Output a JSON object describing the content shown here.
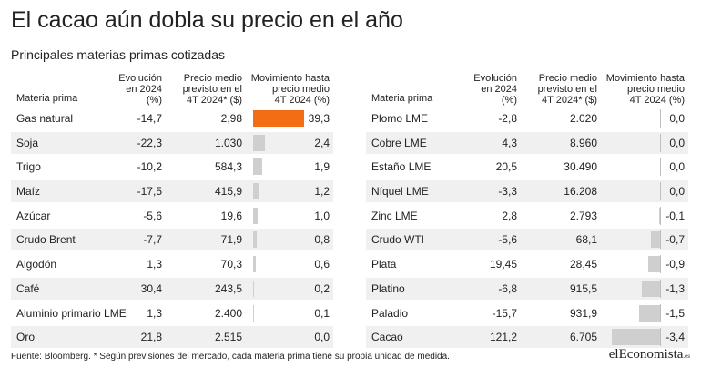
{
  "title": "El cacao aún dobla su precio en el año",
  "subtitle": "Principales materias primas cotizadas",
  "headers": {
    "name": "Materia prima",
    "c1_l1": "Evolución",
    "c1_l2": "en 2024",
    "c1_l3": "(%)",
    "c2_l1": "Precio medio",
    "c2_l2": "previsto en el",
    "c2_l3": "4T 2024* ($)",
    "c3_l1": "Movimiento hasta",
    "c3_l2": "precio medio",
    "c3_l3": "4T 2024 (%)"
  },
  "colors": {
    "accent": "#f36e12",
    "bar": "#cfcfcf",
    "shade": "#f0f0f0"
  },
  "chart_data": [
    {
      "type": "table",
      "columns": [
        "Materia prima",
        "Evolución en 2024 (%)",
        "Precio medio previsto en el 4T 2024* ($)",
        "Movimiento hasta precio medio 4T 2024 (%)"
      ],
      "rows": [
        {
          "name": "Gas natural",
          "evol": "-14,7",
          "price": "2,98",
          "mov": "39,3",
          "mov_value": 39.3,
          "highlight": true
        },
        {
          "name": "Soja",
          "evol": "-22,3",
          "price": "1.030",
          "mov": "2,4",
          "mov_value": 2.4
        },
        {
          "name": "Trigo",
          "evol": "-10,2",
          "price": "584,3",
          "mov": "1,9",
          "mov_value": 1.9
        },
        {
          "name": "Maíz",
          "evol": "-17,5",
          "price": "415,9",
          "mov": "1,2",
          "mov_value": 1.2
        },
        {
          "name": "Azúcar",
          "evol": "-5,6",
          "price": "19,6",
          "mov": "1,0",
          "mov_value": 1.0
        },
        {
          "name": "Crudo Brent",
          "evol": "-7,7",
          "price": "71,9",
          "mov": "0,8",
          "mov_value": 0.8
        },
        {
          "name": "Algodón",
          "evol": "1,3",
          "price": "70,3",
          "mov": "0,6",
          "mov_value": 0.6
        },
        {
          "name": "Café",
          "evol": "30,4",
          "price": "243,5",
          "mov": "0,2",
          "mov_value": 0.2
        },
        {
          "name": "Aluminio primario LME",
          "evol": "1,3",
          "price": "2.400",
          "mov": "0,1",
          "mov_value": 0.1
        },
        {
          "name": "Oro",
          "evol": "21,8",
          "price": "2.515",
          "mov": "0,0",
          "mov_value": 0.0
        }
      ]
    },
    {
      "type": "table",
      "columns": [
        "Materia prima",
        "Evolución en 2024 (%)",
        "Precio medio previsto en el 4T 2024* ($)",
        "Movimiento hasta precio medio 4T 2024 (%)"
      ],
      "rows": [
        {
          "name": "Plomo LME",
          "evol": "-2,8",
          "price": "2.020",
          "mov": "0,0",
          "mov_value": 0.0
        },
        {
          "name": "Cobre LME",
          "evol": "4,3",
          "price": "8.960",
          "mov": "0,0",
          "mov_value": 0.0
        },
        {
          "name": "Estaño LME",
          "evol": "20,5",
          "price": "30.490",
          "mov": "0,0",
          "mov_value": 0.0
        },
        {
          "name": "Níquel LME",
          "evol": "-3,3",
          "price": "16.208",
          "mov": "0,0",
          "mov_value": 0.0
        },
        {
          "name": "Zinc LME",
          "evol": "2,8",
          "price": "2.793",
          "mov": "-0,1",
          "mov_value": -0.1
        },
        {
          "name": "Crudo WTI",
          "evol": "-5,6",
          "price": "68,1",
          "mov": "-0,7",
          "mov_value": -0.7
        },
        {
          "name": "Plata",
          "evol": "19,45",
          "price": "28,45",
          "mov": "-0,9",
          "mov_value": -0.9
        },
        {
          "name": "Platino",
          "evol": "-6,8",
          "price": "915,5",
          "mov": "-1,3",
          "mov_value": -1.3
        },
        {
          "name": "Paladio",
          "evol": "-15,7",
          "price": "931,9",
          "mov": "-1,5",
          "mov_value": -1.5
        },
        {
          "name": "Cacao",
          "evol": "121,2",
          "price": "6.705",
          "mov": "-3,4",
          "mov_value": -3.4
        }
      ]
    }
  ],
  "source": "Fuente: Bloomberg. * Según previsiones del mercado, cada materia prima tiene su propia unidad de medida.",
  "logo": {
    "main": "elEconomista",
    "suffix": ".es"
  }
}
